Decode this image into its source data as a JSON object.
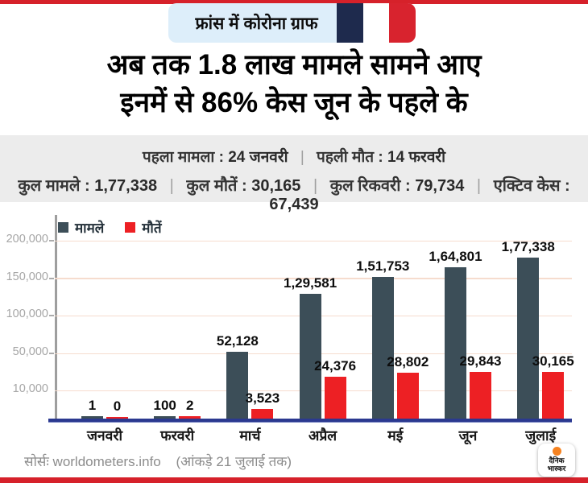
{
  "header": {
    "tag_label": "फ्रांस में कोरोना ग्राफ"
  },
  "title": {
    "line1": "अब तक 1.8 लाख मामले सामने आए",
    "line2": "इनमें से 86% केस जून के पहले के"
  },
  "stats": {
    "separator": "|",
    "line1": [
      {
        "label": "पहला मामला :",
        "value": "24 जनवरी"
      },
      {
        "label": "पहली मौत :",
        "value": "14 फरवरी"
      }
    ],
    "line2": [
      {
        "label": "कुल मामले :",
        "value": "1,77,338"
      },
      {
        "label": "कुल मौतें :",
        "value": "30,165"
      },
      {
        "label": "कुल रिकवरी :",
        "value": "79,734"
      },
      {
        "label": "एक्टिव केस :",
        "value": "67,439"
      }
    ]
  },
  "chart_data": {
    "type": "bar",
    "title": "",
    "categories": [
      "जनवरी",
      "फरवरी",
      "मार्च",
      "अप्रैल",
      "मई",
      "जून",
      "जुलाई"
    ],
    "series": [
      {
        "name": "मामले",
        "color": "#3c4e58",
        "values": [
          1,
          100,
          52128,
          129581,
          151753,
          164801,
          177338
        ],
        "labels": [
          "1",
          "100",
          "52,128",
          "1,29,581",
          "1,51,753",
          "1,64,801",
          "1,77,338"
        ]
      },
      {
        "name": "मौतें",
        "color": "#ed2024",
        "values": [
          0,
          2,
          3523,
          24376,
          28802,
          29843,
          30165
        ],
        "labels": [
          "0",
          "2",
          "3,523",
          "24,376",
          "28,802",
          "29,843",
          "30,165"
        ]
      }
    ],
    "y_ticks": [
      {
        "label": "200,000",
        "value": 200000,
        "dash": true
      },
      {
        "label": "150,000",
        "value": 150000,
        "dash": true
      },
      {
        "label": "100,000",
        "value": 100000,
        "dash": true
      },
      {
        "label": "50,000",
        "value": 50000,
        "dash": true
      },
      {
        "label": "10,000",
        "value": 10000,
        "dash": false
      }
    ],
    "ylim": [
      0,
      215000
    ],
    "grid": "horizontal",
    "legend_position": "top-left",
    "axis_scale_note": "axis compressed above 50,000; 10,000 band enlarged for visibility"
  },
  "footer": {
    "source": "सोर्सः worldometers.info",
    "note": "(आंकड़े 21 जुलाई तक)"
  },
  "brand": {
    "name_line1": "दैनिक",
    "name_line2": "भास्कर"
  },
  "colors": {
    "accent_red": "#d6212a",
    "header_box": "#ddeefa",
    "flag_blue": "#1e2a4d",
    "flag_white": "#ffffff",
    "flag_red": "#d8232e",
    "cases_bar": "#3c4e58",
    "deaths_bar": "#ed2024",
    "gridline": "#f6dcce",
    "baseline_blue": "#2b3990",
    "stats_bg": "#ececec",
    "logo_sun": "#f6821f"
  }
}
